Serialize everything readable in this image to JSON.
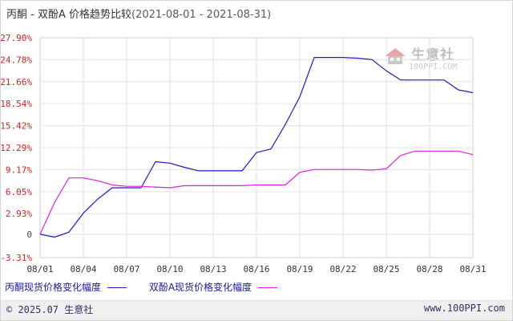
{
  "header": {
    "title": "丙酮 - 双酚A 价格趋势比较",
    "date_range": "(2021-08-01 - 2021-08-31)"
  },
  "watermark": {
    "brand": "生意社",
    "site": "100PPI.COM"
  },
  "footer": {
    "copyright": "© 2025.07 生意社",
    "site": "www.100PPI.com"
  },
  "colors": {
    "series_1": "#1a1ac8",
    "series_2": "#e020e0",
    "grid": "#e2e2e2",
    "y_tick_text": "#cc2222"
  },
  "chart_data": {
    "type": "line",
    "title": "丙酮 - 双酚A 价格趋势比较",
    "ylim": [
      -3.31,
      27.9
    ],
    "ytick_labels": [
      "27.90%",
      "24.78%",
      "21.66%",
      "18.54%",
      "15.42%",
      "12.29%",
      "9.17%",
      "6.05%",
      "2.93%",
      "0",
      "-3.31%"
    ],
    "ytick_values": [
      27.9,
      24.78,
      21.66,
      18.54,
      15.42,
      12.29,
      9.17,
      6.05,
      2.93,
      0,
      -3.31
    ],
    "xtick_labels": [
      "08/01",
      "08/04",
      "08/07",
      "08/10",
      "08/13",
      "08/16",
      "08/19",
      "08/22",
      "08/25",
      "08/28",
      "08/31"
    ],
    "x_days": [
      1,
      2,
      3,
      4,
      5,
      6,
      7,
      8,
      9,
      10,
      11,
      12,
      13,
      14,
      15,
      16,
      17,
      18,
      19,
      20,
      21,
      22,
      23,
      24,
      25,
      26,
      27,
      28,
      29,
      30,
      31
    ],
    "grid": true,
    "legend_position": "bottom",
    "series": [
      {
        "name": "丙酮现货价格变化幅度",
        "values": [
          0,
          -0.4,
          0.3,
          3.0,
          5.0,
          6.6,
          6.6,
          6.6,
          10.3,
          10.1,
          9.5,
          9.0,
          9.0,
          9.0,
          9.0,
          11.6,
          12.1,
          15.6,
          19.5,
          25.1,
          25.1,
          25.1,
          25.0,
          24.8,
          23.2,
          21.9,
          21.9,
          21.9,
          21.9,
          20.5,
          20.1
        ]
      },
      {
        "name": "双酚A现货价格变化幅度",
        "values": [
          0,
          4.5,
          8.0,
          8.0,
          7.6,
          7.0,
          6.8,
          6.8,
          6.7,
          6.6,
          6.9,
          6.9,
          6.9,
          6.9,
          6.9,
          7.0,
          7.0,
          7.0,
          8.8,
          9.2,
          9.2,
          9.2,
          9.2,
          9.1,
          9.3,
          11.2,
          11.8,
          11.8,
          11.8,
          11.8,
          11.3
        ]
      }
    ]
  }
}
